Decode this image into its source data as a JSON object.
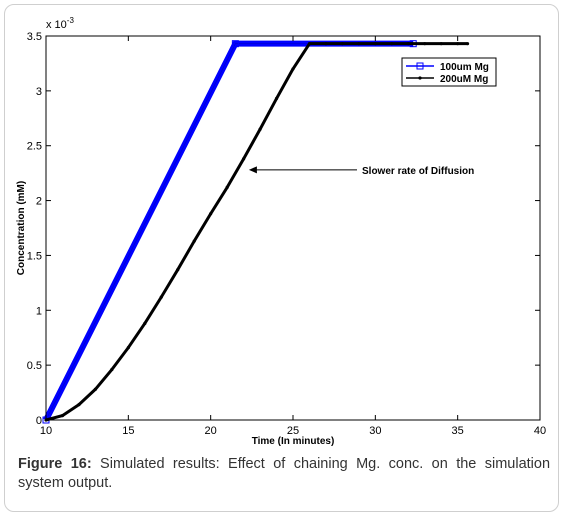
{
  "chart_data": {
    "type": "line",
    "title": "",
    "xlabel": "Time (In minutes)",
    "ylabel": "Concentration (mM)",
    "y_scale_label": "x 10",
    "y_scale_exponent": "-3",
    "xlim": [
      10,
      40
    ],
    "ylim": [
      0,
      3.5
    ],
    "x_ticks": [
      "10",
      "15",
      "20",
      "25",
      "30",
      "35",
      "40"
    ],
    "y_ticks": [
      "0",
      "0.5",
      "1",
      "1.5",
      "2",
      "2.5",
      "3",
      "3.5"
    ],
    "x_tick_values": [
      10,
      15,
      20,
      25,
      30,
      35,
      40
    ],
    "y_tick_values": [
      0,
      0.5,
      1,
      1.5,
      2,
      2.5,
      3,
      3.5
    ],
    "grid": false,
    "legend_position": "top-right",
    "series": [
      {
        "name": "100um Mg",
        "color": "#0000ff",
        "marker": "square",
        "x": [
          10,
          21.5,
          32.3
        ],
        "y": [
          0,
          3.43,
          3.43
        ]
      },
      {
        "name": "200uM Mg",
        "color": "#000000",
        "marker": "dot",
        "x": [
          10,
          11,
          12,
          13,
          14,
          15,
          16,
          17,
          18,
          19,
          20,
          21,
          22,
          23,
          24,
          25,
          26,
          27,
          28,
          29,
          30,
          31,
          32,
          33,
          34,
          35,
          35.6
        ],
        "y": [
          0,
          0.04,
          0.14,
          0.28,
          0.46,
          0.66,
          0.88,
          1.12,
          1.37,
          1.63,
          1.88,
          2.12,
          2.38,
          2.65,
          2.93,
          3.2,
          3.43,
          3.43,
          3.43,
          3.43,
          3.43,
          3.43,
          3.43,
          3.43,
          3.43,
          3.43,
          3.43
        ]
      }
    ],
    "annotation": {
      "text": "Slower rate of Diffusion",
      "x": 22.2,
      "y": 2.28
    }
  },
  "caption": {
    "label": "Figure 16:",
    "text": "Simulated results: Effect of chaining Mg. conc. on the simulation system output."
  }
}
